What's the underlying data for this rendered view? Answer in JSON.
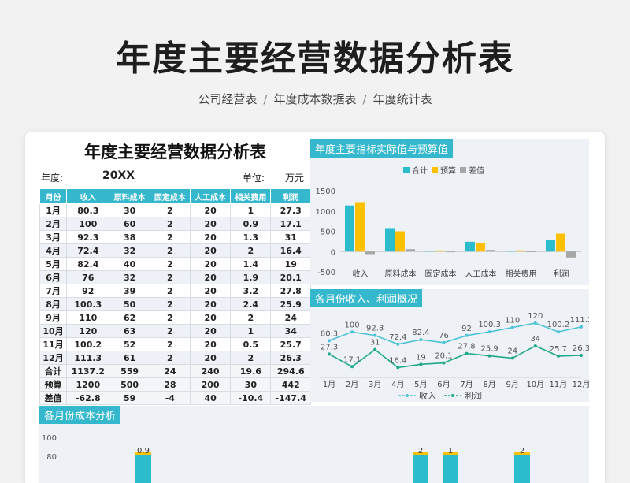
{
  "page": {
    "title": "年度主要经营数据分析表",
    "breadcrumb": [
      "公司经营表",
      "年度成本数据表",
      "年度统计表"
    ]
  },
  "sheet": {
    "title": "年度主要经营数据分析表",
    "year_label": "年度:",
    "year_value": "20XX",
    "unit_label": "单位:",
    "unit_value": "万元",
    "headers": [
      "月份",
      "收入",
      "原料成本",
      "固定成本",
      "人工成本",
      "相关费用",
      "利润"
    ],
    "rows": [
      [
        "1月",
        "80.3",
        "30",
        "2",
        "20",
        "1",
        "27.3"
      ],
      [
        "2月",
        "100",
        "60",
        "2",
        "20",
        "0.9",
        "17.1"
      ],
      [
        "3月",
        "92.3",
        "38",
        "2",
        "20",
        "1.3",
        "31"
      ],
      [
        "4月",
        "72.4",
        "32",
        "2",
        "20",
        "2",
        "16.4"
      ],
      [
        "5月",
        "82.4",
        "40",
        "2",
        "20",
        "1.4",
        "19"
      ],
      [
        "6月",
        "76",
        "32",
        "2",
        "20",
        "1.9",
        "20.1"
      ],
      [
        "7月",
        "92",
        "39",
        "2",
        "20",
        "3.2",
        "27.8"
      ],
      [
        "8月",
        "100.3",
        "50",
        "2",
        "20",
        "2.4",
        "25.9"
      ],
      [
        "9月",
        "110",
        "62",
        "2",
        "20",
        "2",
        "24"
      ],
      [
        "10月",
        "120",
        "63",
        "2",
        "20",
        "1",
        "34"
      ],
      [
        "11月",
        "100.2",
        "52",
        "2",
        "20",
        "0.5",
        "25.7"
      ],
      [
        "12月",
        "111.3",
        "61",
        "2",
        "20",
        "2",
        "26.3"
      ]
    ],
    "summary": [
      [
        "合计",
        "1137.2",
        "559",
        "24",
        "240",
        "19.6",
        "294.6"
      ],
      [
        "预算",
        "1200",
        "500",
        "28",
        "200",
        "30",
        "442"
      ],
      [
        "差值",
        "-62.8",
        "59",
        "-4",
        "40",
        "-10.4",
        "-147.4"
      ]
    ]
  },
  "panels": {
    "bar_title": "年度主要指标实际值与预算值",
    "line_title": "各月份收入、利润概况",
    "cost_title": "各月份成本分析"
  },
  "colors": {
    "accent": "#35b8cd",
    "actual": "#2bbccd",
    "budget": "#ffc000",
    "diff": "#a6a6a6",
    "income_line": "#4cc3d6",
    "profit_line": "#1fa88a"
  },
  "chart_data": [
    {
      "type": "bar",
      "title": "年度主要指标实际值与预算值",
      "categories": [
        "收入",
        "原料成本",
        "固定成本",
        "人工成本",
        "相关费用",
        "利润"
      ],
      "series": [
        {
          "name": "合计",
          "values": [
            1137.2,
            559,
            24,
            240,
            19.6,
            294.6
          ]
        },
        {
          "name": "预算",
          "values": [
            1200,
            500,
            28,
            200,
            30,
            442
          ]
        },
        {
          "name": "差值",
          "values": [
            -62.8,
            59,
            -4,
            40,
            -10.4,
            -147.4
          ]
        }
      ],
      "ylim": [
        -500,
        1500
      ],
      "yticks": [
        "-500",
        "0",
        "500",
        "1000",
        "1500"
      ],
      "legend": "top",
      "grid": false
    },
    {
      "type": "line",
      "title": "各月份收入、利润概况",
      "categories": [
        "1月",
        "2月",
        "3月",
        "4月",
        "5月",
        "6月",
        "7月",
        "8月",
        "9月",
        "10月",
        "11月",
        "12月"
      ],
      "series": [
        {
          "name": "收入",
          "values": [
            80.3,
            100,
            92.3,
            72.4,
            82.4,
            76,
            92,
            100.3,
            110,
            120,
            100.2,
            111.3
          ],
          "labels": [
            "80.3",
            "100",
            "92.3",
            "72.4",
            "82.4",
            "76",
            "92",
            "100.3",
            "110",
            "120",
            "100.2",
            "111.3"
          ]
        },
        {
          "name": "利润",
          "values": [
            27.3,
            17.1,
            31,
            16.4,
            19,
            20.1,
            27.8,
            25.9,
            24,
            34,
            25.7,
            26.3
          ],
          "labels": [
            "27.3",
            "17.1",
            "31",
            "16.4",
            "19",
            "20.1",
            "27.8",
            "25.9",
            "24",
            "34",
            "25.7",
            "26.3"
          ]
        }
      ],
      "legend": "bottom",
      "grid": false
    },
    {
      "type": "bar",
      "title": "各月份成本分析",
      "yticks": [
        "100",
        "80"
      ],
      "visible_labels": [
        "0.9",
        "2",
        "1",
        "2"
      ]
    }
  ]
}
